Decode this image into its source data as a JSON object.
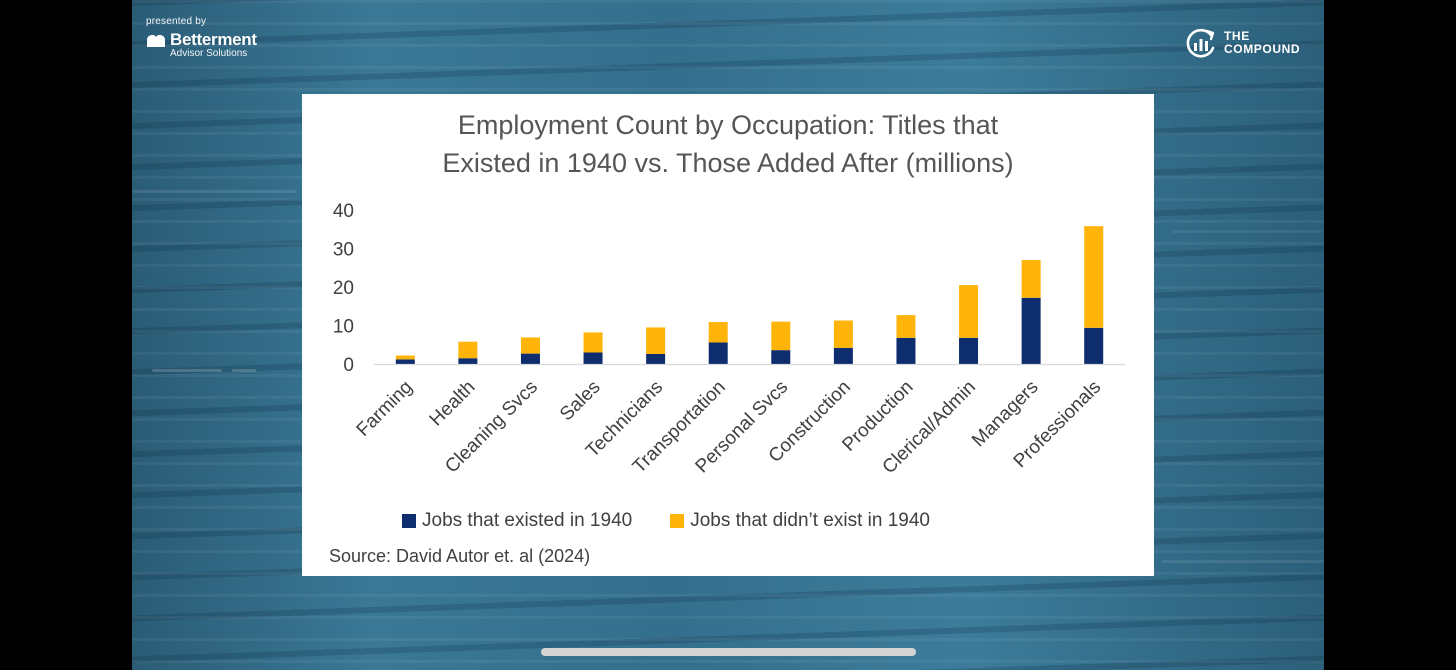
{
  "branding": {
    "presented_by": "presented by",
    "left_logo_name": "Betterment",
    "left_logo_sub": "Advisor Solutions",
    "right_logo_line1": "THE",
    "right_logo_line2": "COMPOUND"
  },
  "colors": {
    "existed": "#0d2d6e",
    "new": "#ffb40a"
  },
  "chart_data": {
    "type": "bar",
    "stacked": true,
    "title_lines": [
      "Employment Count by Occupation: Titles that",
      "Existed in 1940 vs. Those Added After (millions)"
    ],
    "categories": [
      "Farming",
      "Health",
      "Cleaning Svcs",
      "Sales",
      "Technicians",
      "Transportation",
      "Personal Svcs",
      "Construction",
      "Production",
      "Clerical/Admin",
      "Managers",
      "Professionals"
    ],
    "series": [
      {
        "name": "Jobs that existed in 1940",
        "values": [
          1.2,
          1.5,
          2.7,
          3.0,
          2.6,
          5.6,
          3.6,
          4.2,
          6.8,
          6.8,
          17.2,
          9.4
        ]
      },
      {
        "name": "Jobs that didn’t exist in 1940",
        "values": [
          1.0,
          4.3,
          4.2,
          5.2,
          6.9,
          5.3,
          7.4,
          7.1,
          5.9,
          13.7,
          9.8,
          26.4
        ]
      }
    ],
    "yticks": [
      "0",
      "10",
      "20",
      "30",
      "40"
    ],
    "ylim": [
      0,
      40
    ],
    "xlabel": "",
    "ylabel": "",
    "legend": "bottom",
    "grid": false,
    "source": "Source: David Autor et. al (2024)"
  }
}
